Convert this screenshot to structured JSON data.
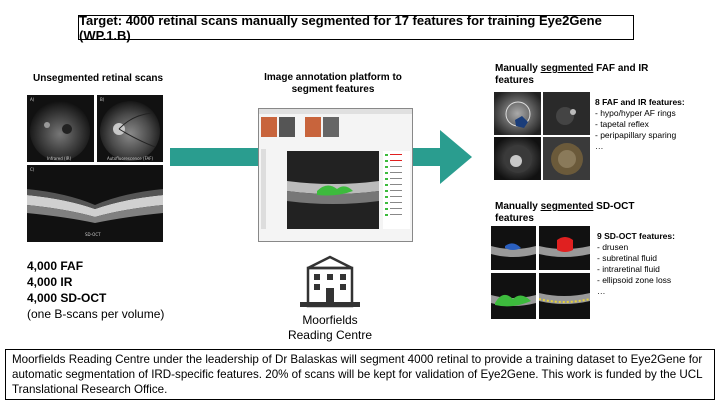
{
  "title": "Target: 4000 retinal scans manually segmented for 17 features for training Eye2Gene (WP.1.B)",
  "left": {
    "header": "Unsegmented retinal scans",
    "img_labels": [
      "Infrared (IR)",
      "Autofluorescence (FAF)",
      "SD-OCT"
    ],
    "stats": [
      "4,000 FAF",
      "4,000 IR",
      "4,000 SD-OCT"
    ],
    "note": "(one B-scans per volume)"
  },
  "middle": {
    "header_line1": "Image annotation platform to",
    "header_line2": "segment features",
    "org_line1": "Moorfields",
    "org_line2": "Reading Centre"
  },
  "right_top": {
    "header_pre": "Manually ",
    "header_underlined": "segmented",
    "header_post": " FAF and IR",
    "header_line2": "features",
    "features_title": "8 FAF and IR features:",
    "features": [
      "- hypo/hyper AF rings",
      "- tapetal reflex",
      "- peripapillary sparing",
      "…"
    ]
  },
  "right_bottom": {
    "header_pre": "Manually ",
    "header_underlined": "segmented",
    "header_post": " SD-OCT",
    "header_line2": "features",
    "features_title": "9 SD-OCT features:",
    "features": [
      "- drusen",
      "- subretinal fluid",
      "- intraretinal fluid",
      "- ellipsoid zone loss",
      "…"
    ]
  },
  "summary": "Moorfields Reading Centre under the leadership of Dr Balaskas will segment 4000 retinal to provide a training dataset to Eye2Gene for automatic segmentation of IRD-specific features. 20% of scans will be kept for validation of Eye2Gene. This work is funded by the UCL Translational Research Office.",
  "colors": {
    "arrow": "#2a9d8f",
    "seg_green": "#3dbb3d",
    "seg_red": "#e02020"
  }
}
